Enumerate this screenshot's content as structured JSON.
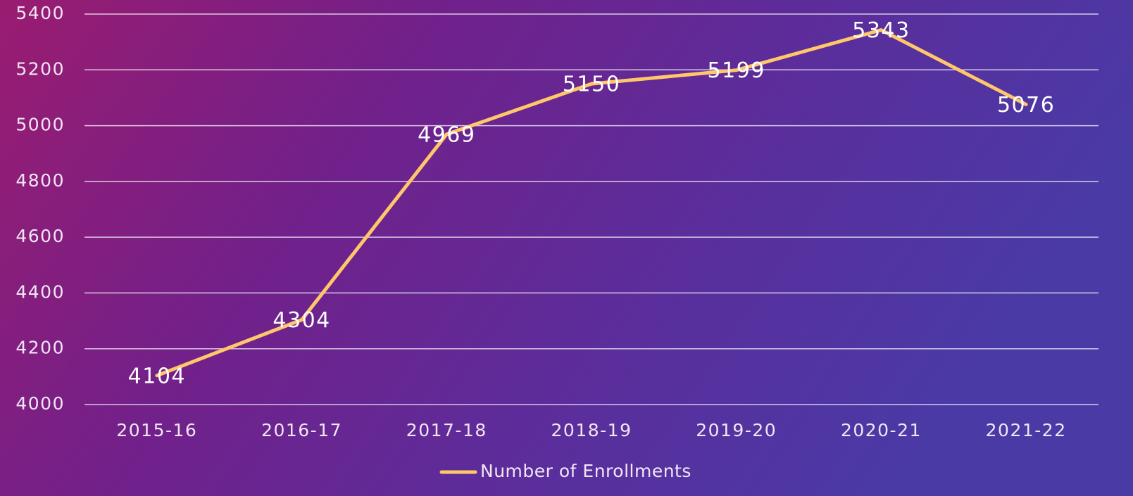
{
  "chart_data": {
    "type": "line",
    "categories": [
      "2015-16",
      "2016-17",
      "2017-18",
      "2018-19",
      "2019-20",
      "2020-21",
      "2021-22"
    ],
    "series": [
      {
        "name": "Number of Enrollments",
        "color": "#ffc76a",
        "values": [
          4104,
          4304,
          4969,
          5150,
          5199,
          5343,
          5076
        ]
      }
    ],
    "ylim": [
      4000,
      5400
    ],
    "yticks": [
      4000,
      4200,
      4400,
      4600,
      4800,
      5000,
      5200,
      5400
    ],
    "grid": true,
    "legend": "bottom"
  }
}
